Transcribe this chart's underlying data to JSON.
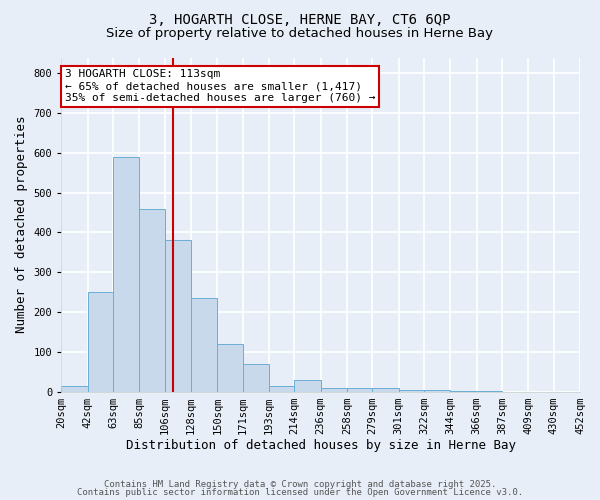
{
  "title1": "3, HOGARTH CLOSE, HERNE BAY, CT6 6QP",
  "title2": "Size of property relative to detached houses in Herne Bay",
  "xlabel": "Distribution of detached houses by size in Herne Bay",
  "ylabel": "Number of detached properties",
  "bin_edges": [
    20,
    42,
    63,
    85,
    106,
    128,
    150,
    171,
    193,
    214,
    236,
    258,
    279,
    301,
    322,
    344,
    366,
    387,
    409,
    430,
    452
  ],
  "bar_heights": [
    13,
    250,
    590,
    460,
    380,
    235,
    120,
    70,
    15,
    30,
    10,
    10,
    8,
    5,
    3,
    2,
    1,
    0,
    0,
    0
  ],
  "bar_color": "#c8d9eb",
  "bar_edge_color": "#6baed6",
  "bar_edge_width": 0.7,
  "ref_line_x": 113,
  "ref_line_color": "#cc0000",
  "annotation_text": "3 HOGARTH CLOSE: 113sqm\n← 65% of detached houses are smaller (1,417)\n35% of semi-detached houses are larger (760) →",
  "annotation_box_color": "#ffffff",
  "annotation_box_edge_color": "#cc0000",
  "ylim": [
    0,
    840
  ],
  "yticks": [
    0,
    100,
    200,
    300,
    400,
    500,
    600,
    700,
    800
  ],
  "background_color": "#e8eef8",
  "grid_color": "#ffffff",
  "footer_text1": "Contains HM Land Registry data © Crown copyright and database right 2025.",
  "footer_text2": "Contains public sector information licensed under the Open Government Licence v3.0.",
  "title_fontsize": 10,
  "subtitle_fontsize": 9.5,
  "axis_label_fontsize": 9,
  "tick_fontsize": 7.5,
  "annotation_fontsize": 8,
  "footer_fontsize": 6.5
}
